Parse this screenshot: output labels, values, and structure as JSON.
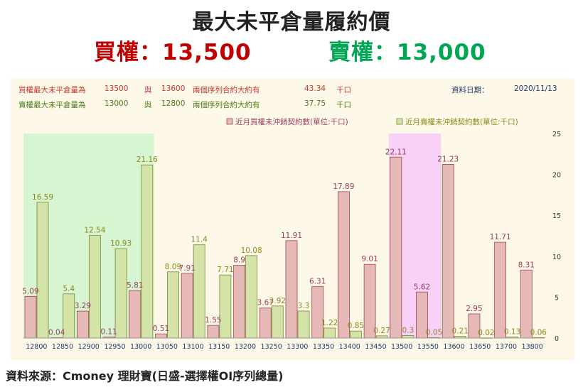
{
  "header": {
    "title": "最大未平倉量履約價",
    "call_label": "買權：13,500",
    "put_label": "賣權：13,000"
  },
  "info": {
    "row1": {
      "label": "買權最大未平倉量為",
      "strike_a": "13500",
      "conj": "與",
      "strike_b": "13600",
      "desc": "兩個序列合約大約有",
      "amount": "43.34",
      "unit": "千口"
    },
    "row2": {
      "label": "賣權最大未平倉量為",
      "strike_a": "13000",
      "conj": "與",
      "strike_b": "12800",
      "desc": "兩個序列合約大約有",
      "amount": "37.75",
      "unit": "千口"
    },
    "date_label": "資料日期：",
    "date_value": "2020/11/13"
  },
  "source": "資料來源：Cmoney 理財寶(日盛-選擇權OI序列總量)",
  "colors": {
    "call_fill": "#e6b8b8",
    "call_stroke": "#a04848",
    "call_label": "#9b3d5e",
    "put_fill": "#d4e4a8",
    "put_stroke": "#748a30",
    "put_label": "#8a8a1e",
    "put_zone": "#d6f5d0",
    "call_zone": "#f8d0f8",
    "axis_text": "#1f3a6e"
  },
  "chart_data": {
    "type": "bar",
    "categories": [
      "12800",
      "12850",
      "12900",
      "12950",
      "13000",
      "13050",
      "13100",
      "13150",
      "13200",
      "13250",
      "13300",
      "13350",
      "13400",
      "13450",
      "13500",
      "13550",
      "13600",
      "13650",
      "13700",
      "13800"
    ],
    "series": [
      {
        "name": "近月買權未沖銷契約數(單位:千口)",
        "values": [
          5.09,
          0.04,
          3.29,
          0.11,
          5.81,
          0.51,
          7.91,
          1.55,
          8.9,
          3.67,
          11.91,
          6.31,
          17.89,
          9.01,
          22.11,
          5.62,
          21.23,
          2.95,
          11.71,
          8.31
        ]
      },
      {
        "name": "近月賣權未沖銷契約數(單位:千口)",
        "values": [
          16.59,
          5.4,
          12.54,
          10.93,
          21.16,
          8.09,
          11.4,
          7.71,
          10.08,
          3.92,
          3.3,
          1.22,
          0.85,
          0.27,
          0.3,
          0.05,
          0.21,
          0.02,
          0.13,
          0.06
        ]
      }
    ],
    "ylim": [
      0,
      25
    ],
    "yticks": [
      0,
      5,
      10,
      15,
      20,
      25
    ],
    "highlight_put_range": [
      "12800",
      "13000"
    ],
    "highlight_call_range": [
      "13500",
      "13550"
    ],
    "legend": "top-right",
    "grid": false
  }
}
